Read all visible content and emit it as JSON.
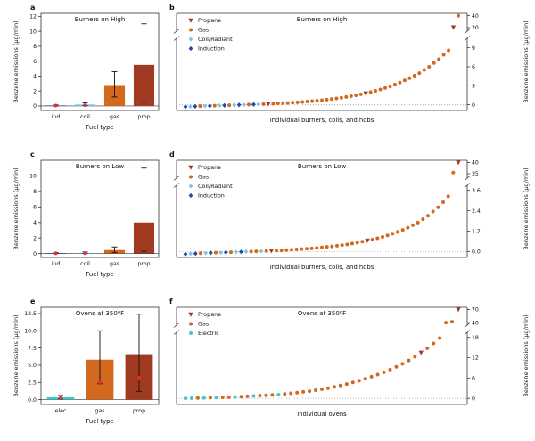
{
  "colors": {
    "propane": "#A03A20",
    "gas": "#D2691E",
    "coil": "#7FC4E8",
    "induction": "#2547A8",
    "electric": "#45C5C5",
    "median": "#E03030",
    "axis": "#333333"
  },
  "legend_labels": {
    "propane": "Propane",
    "gas": "Gas",
    "coil": "Coil/Radiant",
    "induction": "Induction",
    "electric": "Electric"
  },
  "marker_shapes": {
    "propane": "triangle-down",
    "gas": "circle",
    "coil": "diamond",
    "induction": "diamond",
    "electric": "circle"
  },
  "chart_data": [
    {
      "panel": "a",
      "type": "bar",
      "title": "Burners on High",
      "xlabel": "Fuel type",
      "ylabel": "Benzene emissions (µg/min)",
      "categories": [
        "ind",
        "coil",
        "gas",
        "prop"
      ],
      "values": [
        0.07,
        0.2,
        2.8,
        5.5
      ],
      "errors": [
        [
          0,
          0.15
        ],
        [
          0.05,
          0.4
        ],
        [
          1.2,
          4.6
        ],
        [
          0.5,
          11.0
        ]
      ],
      "medians": [
        0.05,
        0.1,
        null,
        null
      ],
      "bar_series": [
        "induction",
        "coil",
        "gas",
        "propane"
      ],
      "ylim": [
        -0.6,
        12.4
      ],
      "yticks": [
        0,
        2,
        4,
        6,
        8,
        10,
        12
      ],
      "ytick_labels": [
        "0",
        "2",
        "4",
        "6",
        "8",
        "10",
        "12"
      ]
    },
    {
      "panel": "b",
      "type": "scatter",
      "title": "Burners on High",
      "xlabel": "Individual burners, coils, and hobs",
      "ylabel": "Benzene emissions (µg/min)",
      "legend": [
        "propane",
        "gas",
        "coil",
        "induction"
      ],
      "lower": {
        "min": -0.9,
        "max": 10.5,
        "ticks": [
          0,
          3,
          6,
          9
        ],
        "tick_labels": [
          "0",
          "3",
          "6",
          "9"
        ]
      },
      "upper": {
        "min": 14,
        "max": 44,
        "ticks": [
          20,
          40
        ],
        "tick_labels": [
          "20",
          "40"
        ]
      },
      "points": [
        [
          -0.3,
          "induction"
        ],
        [
          -0.27,
          "coil"
        ],
        [
          -0.25,
          "induction"
        ],
        [
          -0.22,
          "gas"
        ],
        [
          -0.2,
          "coil"
        ],
        [
          -0.18,
          "induction"
        ],
        [
          -0.15,
          "gas"
        ],
        [
          -0.12,
          "coil"
        ],
        [
          -0.1,
          "induction"
        ],
        [
          -0.08,
          "gas"
        ],
        [
          -0.05,
          "coil"
        ],
        [
          -0.02,
          "induction"
        ],
        [
          0.0,
          "coil"
        ],
        [
          0.03,
          "gas"
        ],
        [
          0.05,
          "induction"
        ],
        [
          0.08,
          "coil"
        ],
        [
          0.1,
          "gas"
        ],
        [
          0.13,
          "propane"
        ],
        [
          0.16,
          "gas"
        ],
        [
          0.2,
          "gas"
        ],
        [
          0.24,
          "gas"
        ],
        [
          0.28,
          "gas"
        ],
        [
          0.33,
          "gas"
        ],
        [
          0.38,
          "gas"
        ],
        [
          0.44,
          "gas"
        ],
        [
          0.5,
          "gas"
        ],
        [
          0.57,
          "gas"
        ],
        [
          0.64,
          "gas"
        ],
        [
          0.72,
          "gas"
        ],
        [
          0.8,
          "gas"
        ],
        [
          0.9,
          "gas"
        ],
        [
          1.0,
          "gas"
        ],
        [
          1.1,
          "gas"
        ],
        [
          1.22,
          "gas"
        ],
        [
          1.35,
          "gas"
        ],
        [
          1.5,
          "gas"
        ],
        [
          1.65,
          "gas"
        ],
        [
          1.8,
          "propane"
        ],
        [
          2.0,
          "gas"
        ],
        [
          2.2,
          "gas"
        ],
        [
          2.4,
          "gas"
        ],
        [
          2.65,
          "gas"
        ],
        [
          2.9,
          "gas"
        ],
        [
          3.2,
          "gas"
        ],
        [
          3.5,
          "gas"
        ],
        [
          3.85,
          "gas"
        ],
        [
          4.2,
          "gas"
        ],
        [
          4.6,
          "gas"
        ],
        [
          5.0,
          "gas"
        ],
        [
          5.5,
          "gas"
        ],
        [
          6.0,
          "gas"
        ],
        [
          6.6,
          "gas"
        ],
        [
          7.2,
          "gas"
        ],
        [
          7.9,
          "gas"
        ],
        [
          8.6,
          "gas"
        ],
        [
          20.5,
          "propane"
        ],
        [
          40.0,
          "gas"
        ]
      ]
    },
    {
      "panel": "c",
      "type": "bar",
      "title": "Burners on Low",
      "xlabel": "Fuel type",
      "ylabel": "Benzene emissions (µg/min)",
      "categories": [
        "ind",
        "coil",
        "gas",
        "prop"
      ],
      "values": [
        0.05,
        0.08,
        0.45,
        4.0
      ],
      "errors": [
        [
          0,
          0.12
        ],
        [
          0,
          0.2
        ],
        [
          0.15,
          0.85
        ],
        [
          0.3,
          11.0
        ]
      ],
      "medians": [
        0.03,
        0.05,
        null,
        null
      ],
      "bar_series": [
        "induction",
        "coil",
        "gas",
        "propane"
      ],
      "ylim": [
        -0.5,
        12.0
      ],
      "yticks": [
        0,
        2,
        4,
        6,
        8,
        10
      ],
      "ytick_labels": [
        "0",
        "2",
        "4",
        "6",
        "8",
        "10"
      ]
    },
    {
      "panel": "d",
      "type": "scatter",
      "title": "Burners on Low",
      "xlabel": "Individual burners, coils, and hobs",
      "ylabel": "Benzene emissions (µg/min)",
      "legend": [
        "propane",
        "gas",
        "coil",
        "induction"
      ],
      "lower": {
        "min": -0.35,
        "max": 3.9,
        "ticks": [
          0.0,
          1.2,
          2.4,
          3.6
        ],
        "tick_labels": [
          "0.0",
          "1.2",
          "2.4",
          "3.6"
        ]
      },
      "upper": {
        "min": 33,
        "max": 41,
        "ticks": [
          35,
          40
        ],
        "tick_labels": [
          "35",
          "40"
        ]
      },
      "points": [
        [
          -0.15,
          "induction"
        ],
        [
          -0.13,
          "coil"
        ],
        [
          -0.12,
          "induction"
        ],
        [
          -0.1,
          "gas"
        ],
        [
          -0.09,
          "coil"
        ],
        [
          -0.08,
          "induction"
        ],
        [
          -0.07,
          "gas"
        ],
        [
          -0.06,
          "coil"
        ],
        [
          -0.05,
          "induction"
        ],
        [
          -0.04,
          "gas"
        ],
        [
          -0.03,
          "coil"
        ],
        [
          -0.02,
          "induction"
        ],
        [
          -0.01,
          "coil"
        ],
        [
          0.0,
          "gas"
        ],
        [
          0.01,
          "gas"
        ],
        [
          0.02,
          "coil"
        ],
        [
          0.03,
          "gas"
        ],
        [
          0.04,
          "propane"
        ],
        [
          0.05,
          "gas"
        ],
        [
          0.06,
          "gas"
        ],
        [
          0.08,
          "gas"
        ],
        [
          0.1,
          "gas"
        ],
        [
          0.12,
          "gas"
        ],
        [
          0.14,
          "gas"
        ],
        [
          0.16,
          "gas"
        ],
        [
          0.18,
          "gas"
        ],
        [
          0.21,
          "gas"
        ],
        [
          0.24,
          "gas"
        ],
        [
          0.27,
          "gas"
        ],
        [
          0.3,
          "gas"
        ],
        [
          0.34,
          "gas"
        ],
        [
          0.38,
          "gas"
        ],
        [
          0.42,
          "gas"
        ],
        [
          0.47,
          "gas"
        ],
        [
          0.52,
          "gas"
        ],
        [
          0.58,
          "gas"
        ],
        [
          0.64,
          "propane"
        ],
        [
          0.7,
          "gas"
        ],
        [
          0.78,
          "gas"
        ],
        [
          0.86,
          "gas"
        ],
        [
          0.95,
          "gas"
        ],
        [
          1.05,
          "gas"
        ],
        [
          1.15,
          "gas"
        ],
        [
          1.27,
          "gas"
        ],
        [
          1.4,
          "gas"
        ],
        [
          1.55,
          "gas"
        ],
        [
          1.7,
          "gas"
        ],
        [
          1.9,
          "gas"
        ],
        [
          2.1,
          "gas"
        ],
        [
          2.35,
          "gas"
        ],
        [
          2.6,
          "gas"
        ],
        [
          2.9,
          "gas"
        ],
        [
          3.25,
          "gas"
        ],
        [
          35.5,
          "gas"
        ],
        [
          40.0,
          "propane"
        ]
      ]
    },
    {
      "panel": "e",
      "type": "bar",
      "title": "Ovens at 350ºF",
      "xlabel": "Fuel type",
      "ylabel": "Benzene emissions (µg/min)",
      "categories": [
        "elec",
        "gas",
        "prop"
      ],
      "values": [
        0.35,
        5.8,
        6.6
      ],
      "errors": [
        [
          0.1,
          0.6
        ],
        [
          2.3,
          10.0
        ],
        [
          1.2,
          12.4
        ]
      ],
      "medians": [
        0.2,
        2.5,
        3.2
      ],
      "bar_series": [
        "electric",
        "gas",
        "propane"
      ],
      "ylim": [
        -0.7,
        13.4
      ],
      "yticks": [
        0,
        2.5,
        5,
        7.5,
        10,
        12.5
      ],
      "ytick_labels": [
        "0.0",
        "2.5",
        "5.0",
        "7.5",
        "10.0",
        "12.5"
      ]
    },
    {
      "panel": "f",
      "type": "scatter",
      "title": "Ovens at 350ºF",
      "xlabel": "Individual ovens",
      "ylabel": "Benzene emissions (µg/min)",
      "legend": [
        "propane",
        "gas",
        "electric"
      ],
      "lower": {
        "min": -1.8,
        "max": 19.5,
        "ticks": [
          0,
          6,
          12,
          18
        ],
        "tick_labels": [
          "0",
          "6",
          "12",
          "18"
        ]
      },
      "upper": {
        "min": 34,
        "max": 75,
        "ticks": [
          40,
          70
        ],
        "tick_labels": [
          "40",
          "70"
        ]
      },
      "points": [
        [
          0.0,
          "electric"
        ],
        [
          0.05,
          "electric"
        ],
        [
          0.1,
          "gas"
        ],
        [
          0.15,
          "electric"
        ],
        [
          0.2,
          "gas"
        ],
        [
          0.25,
          "electric"
        ],
        [
          0.3,
          "gas"
        ],
        [
          0.35,
          "gas"
        ],
        [
          0.4,
          "electric"
        ],
        [
          0.5,
          "gas"
        ],
        [
          0.6,
          "gas"
        ],
        [
          0.7,
          "electric"
        ],
        [
          0.8,
          "gas"
        ],
        [
          0.9,
          "gas"
        ],
        [
          1.0,
          "gas"
        ],
        [
          1.1,
          "electric"
        ],
        [
          1.3,
          "gas"
        ],
        [
          1.5,
          "gas"
        ],
        [
          1.7,
          "gas"
        ],
        [
          1.9,
          "gas"
        ],
        [
          2.1,
          "gas"
        ],
        [
          2.4,
          "gas"
        ],
        [
          2.7,
          "gas"
        ],
        [
          3.0,
          "gas"
        ],
        [
          3.4,
          "gas"
        ],
        [
          3.8,
          "gas"
        ],
        [
          4.2,
          "gas"
        ],
        [
          4.7,
          "gas"
        ],
        [
          5.2,
          "gas"
        ],
        [
          5.8,
          "gas"
        ],
        [
          6.4,
          "gas"
        ],
        [
          7.0,
          "gas"
        ],
        [
          7.7,
          "gas"
        ],
        [
          8.5,
          "gas"
        ],
        [
          9.3,
          "gas"
        ],
        [
          10.2,
          "gas"
        ],
        [
          11.2,
          "gas"
        ],
        [
          12.3,
          "gas"
        ],
        [
          13.5,
          "propane"
        ],
        [
          14.8,
          "gas"
        ],
        [
          16.2,
          "gas"
        ],
        [
          17.8,
          "gas"
        ],
        [
          40.0,
          "gas"
        ],
        [
          42.0,
          "gas"
        ],
        [
          70.0,
          "propane"
        ]
      ]
    }
  ]
}
